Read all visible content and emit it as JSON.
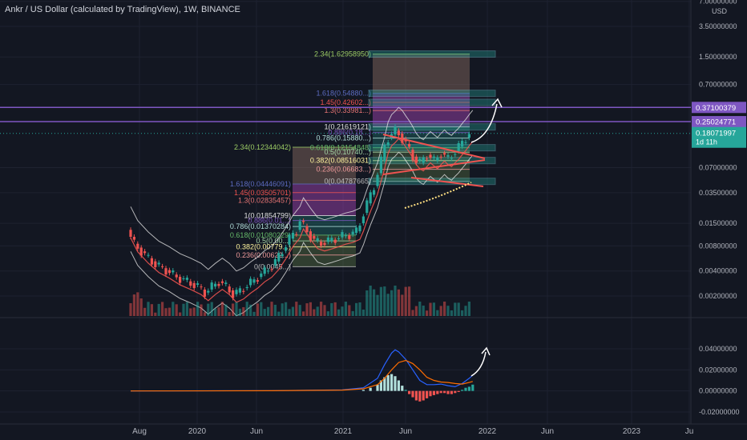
{
  "title": "Ankr / US Dollar (calculated by TradingView), 1W, BINANCE",
  "currency": "USD",
  "colors": {
    "background": "#131722",
    "grid": "#1e2230",
    "up": "#26a69a",
    "down": "#ef5350",
    "horizontal_line": "#7e57c2",
    "price_badge": "#26a69a"
  },
  "chart_data": [
    {
      "type": "candlestick",
      "yscale": "log",
      "x_tick_labels": [
        "Aug",
        "2020",
        "Jun",
        "2021",
        "Jun",
        "2022",
        "Jun",
        "2023",
        "Ju"
      ],
      "y_tick_labels": [
        "7.00000000",
        "3.50000000",
        "1.50000000",
        "0.70000000",
        "0.07000000",
        "0.03500000",
        "0.01500000",
        "0.00800000",
        "0.00400000",
        "0.00200000"
      ],
      "y_tick_values": [
        7.0,
        3.5,
        1.5,
        0.7,
        0.07,
        0.035,
        0.015,
        0.008,
        0.004,
        0.002
      ],
      "horizontal_lines": [
        {
          "value": 0.37100379,
          "label": "0.37100379"
        },
        {
          "value": 0.25024771,
          "label": "0.25024771"
        }
      ],
      "last_price": {
        "value": 0.18071997,
        "label": "0.18071997",
        "countdown": "1d 11h"
      },
      "fib_levels_large": [
        {
          "label": "2.34(1.62958950)",
          "value": 1.6295895
        },
        {
          "label": "1.618(0.54880...)",
          "value": 0.5488
        },
        {
          "label": "1.45(0.42602...)",
          "value": 0.42602
        },
        {
          "label": "1.3(0.33981...)",
          "value": 0.33981
        },
        {
          "label": "1(0.21619121)",
          "value": 0.21619121
        },
        {
          "label": "0.886(0.18...)",
          "value": 0.185
        },
        {
          "label": "0.786(0.15880...)",
          "value": 0.1588
        },
        {
          "label": "0.618(0.12154848)",
          "value": 0.12154848
        },
        {
          "label": "0.5(0.10740...)",
          "value": 0.1074
        },
        {
          "label": "0.382(0.08516031)",
          "value": 0.08516031
        },
        {
          "label": "0.236(0.06683...)",
          "value": 0.06683
        },
        {
          "label": "0(0.04787665)",
          "value": 0.04787665
        }
      ],
      "fib_levels_small": [
        {
          "label": "2.34(0.12344042)",
          "value": 0.12344042
        },
        {
          "label": "1.618(0.04446091)",
          "value": 0.04446091
        },
        {
          "label": "1.45(0.03505701)",
          "value": 0.03505701
        },
        {
          "label": "1.3(0.02835457)",
          "value": 0.02835457
        },
        {
          "label": "1(0.01854799)",
          "value": 0.01854799
        },
        {
          "label": "0.886(0.01...)",
          "value": 0.0162
        },
        {
          "label": "0.786(0.01370284)",
          "value": 0.01370284
        },
        {
          "label": "0.618(0.01080229)",
          "value": 0.01080229
        },
        {
          "label": "0.5(0.00...)",
          "value": 0.0092
        },
        {
          "label": "0.382(0.00779...)",
          "value": 0.00779
        },
        {
          "label": "0.236(0.00622...)",
          "value": 0.00622
        },
        {
          "label": "0(0.0045...)",
          "value": 0.0045
        }
      ],
      "price_series": [
        {
          "t": 0,
          "v": 0.0125
        },
        {
          "t": 2,
          "v": 0.0085
        },
        {
          "t": 5,
          "v": 0.0062
        },
        {
          "t": 8,
          "v": 0.0048
        },
        {
          "t": 11,
          "v": 0.0041
        },
        {
          "t": 14,
          "v": 0.0034
        },
        {
          "t": 17,
          "v": 0.003
        },
        {
          "t": 20,
          "v": 0.0026
        },
        {
          "t": 22,
          "v": 0.0022
        },
        {
          "t": 24,
          "v": 0.0026
        },
        {
          "t": 26,
          "v": 0.003
        },
        {
          "t": 28,
          "v": 0.0026
        },
        {
          "t": 30,
          "v": 0.0021
        },
        {
          "t": 32,
          "v": 0.0023
        },
        {
          "t": 34,
          "v": 0.0027
        },
        {
          "t": 36,
          "v": 0.0031
        },
        {
          "t": 38,
          "v": 0.0037
        },
        {
          "t": 40,
          "v": 0.0042
        },
        {
          "t": 42,
          "v": 0.0052
        },
        {
          "t": 44,
          "v": 0.007
        },
        {
          "t": 46,
          "v": 0.0098
        },
        {
          "t": 48,
          "v": 0.0125
        },
        {
          "t": 49,
          "v": 0.016
        },
        {
          "t": 51,
          "v": 0.012
        },
        {
          "t": 53,
          "v": 0.0093
        },
        {
          "t": 55,
          "v": 0.0087
        },
        {
          "t": 57,
          "v": 0.0092
        },
        {
          "t": 59,
          "v": 0.0098
        },
        {
          "t": 61,
          "v": 0.0105
        },
        {
          "t": 63,
          "v": 0.011
        },
        {
          "t": 65,
          "v": 0.012
        },
        {
          "t": 66,
          "v": 0.015
        },
        {
          "t": 67,
          "v": 0.02
        },
        {
          "t": 68,
          "v": 0.026
        },
        {
          "t": 69,
          "v": 0.033
        },
        {
          "t": 70,
          "v": 0.042
        },
        {
          "t": 71,
          "v": 0.06
        },
        {
          "t": 72,
          "v": 0.085
        },
        {
          "t": 73,
          "v": 0.13
        },
        {
          "t": 74,
          "v": 0.16
        },
        {
          "t": 75,
          "v": 0.175
        },
        {
          "t": 76,
          "v": 0.195
        },
        {
          "t": 77,
          "v": 0.18
        },
        {
          "t": 78,
          "v": 0.155
        },
        {
          "t": 79,
          "v": 0.135
        },
        {
          "t": 80,
          "v": 0.115
        },
        {
          "t": 81,
          "v": 0.095
        },
        {
          "t": 82,
          "v": 0.085
        },
        {
          "t": 83,
          "v": 0.08
        },
        {
          "t": 84,
          "v": 0.09
        },
        {
          "t": 85,
          "v": 0.1
        },
        {
          "t": 86,
          "v": 0.092
        },
        {
          "t": 87,
          "v": 0.085
        },
        {
          "t": 88,
          "v": 0.095
        },
        {
          "t": 89,
          "v": 0.105
        },
        {
          "t": 90,
          "v": 0.095
        },
        {
          "t": 91,
          "v": 0.09
        },
        {
          "t": 92,
          "v": 0.1
        },
        {
          "t": 93,
          "v": 0.11
        },
        {
          "t": 94,
          "v": 0.125
        },
        {
          "t": 95,
          "v": 0.14
        },
        {
          "t": 96,
          "v": 0.16
        },
        {
          "t": 97,
          "v": 0.1807
        }
      ]
    },
    {
      "type": "macd",
      "y_tick_labels": [
        "0.04000000",
        "0.02000000",
        "0.00000000",
        "-0.02000000"
      ],
      "y_tick_values": [
        0.04,
        0.02,
        0.0,
        -0.02
      ],
      "ylim": [
        -0.025,
        0.045
      ],
      "macd_line": [
        {
          "t": 0,
          "v": 0.0
        },
        {
          "t": 40,
          "v": 0.0003
        },
        {
          "t": 60,
          "v": 0.001
        },
        {
          "t": 66,
          "v": 0.003
        },
        {
          "t": 70,
          "v": 0.012
        },
        {
          "t": 72,
          "v": 0.025
        },
        {
          "t": 74,
          "v": 0.036
        },
        {
          "t": 75,
          "v": 0.039
        },
        {
          "t": 76,
          "v": 0.037
        },
        {
          "t": 78,
          "v": 0.03
        },
        {
          "t": 80,
          "v": 0.02
        },
        {
          "t": 82,
          "v": 0.01
        },
        {
          "t": 84,
          "v": 0.006
        },
        {
          "t": 86,
          "v": 0.006
        },
        {
          "t": 88,
          "v": 0.0065
        },
        {
          "t": 90,
          "v": 0.005
        },
        {
          "t": 92,
          "v": 0.004
        },
        {
          "t": 94,
          "v": 0.007
        },
        {
          "t": 96,
          "v": 0.012
        },
        {
          "t": 97,
          "v": 0.015
        }
      ],
      "signal_line": [
        {
          "t": 0,
          "v": 0.0
        },
        {
          "t": 40,
          "v": 0.0002
        },
        {
          "t": 60,
          "v": 0.0008
        },
        {
          "t": 66,
          "v": 0.002
        },
        {
          "t": 70,
          "v": 0.006
        },
        {
          "t": 72,
          "v": 0.012
        },
        {
          "t": 74,
          "v": 0.02
        },
        {
          "t": 76,
          "v": 0.027
        },
        {
          "t": 78,
          "v": 0.029
        },
        {
          "t": 80,
          "v": 0.026
        },
        {
          "t": 82,
          "v": 0.02
        },
        {
          "t": 84,
          "v": 0.013
        },
        {
          "t": 86,
          "v": 0.01
        },
        {
          "t": 88,
          "v": 0.0085
        },
        {
          "t": 90,
          "v": 0.008
        },
        {
          "t": 92,
          "v": 0.007
        },
        {
          "t": 94,
          "v": 0.0065
        },
        {
          "t": 96,
          "v": 0.008
        },
        {
          "t": 97,
          "v": 0.009
        }
      ],
      "histogram": [
        {
          "t": 66,
          "v": 0.001
        },
        {
          "t": 68,
          "v": 0.003
        },
        {
          "t": 70,
          "v": 0.006
        },
        {
          "t": 71,
          "v": 0.01
        },
        {
          "t": 72,
          "v": 0.013
        },
        {
          "t": 73,
          "v": 0.015
        },
        {
          "t": 74,
          "v": 0.016
        },
        {
          "t": 75,
          "v": 0.014
        },
        {
          "t": 76,
          "v": 0.01
        },
        {
          "t": 77,
          "v": 0.005
        },
        {
          "t": 78,
          "v": 0.001
        },
        {
          "t": 79,
          "v": -0.003
        },
        {
          "t": 80,
          "v": -0.006
        },
        {
          "t": 81,
          "v": -0.009
        },
        {
          "t": 82,
          "v": -0.01
        },
        {
          "t": 83,
          "v": -0.009
        },
        {
          "t": 84,
          "v": -0.007
        },
        {
          "t": 85,
          "v": -0.005
        },
        {
          "t": 86,
          "v": -0.004
        },
        {
          "t": 87,
          "v": -0.003
        },
        {
          "t": 88,
          "v": -0.002
        },
        {
          "t": 89,
          "v": -0.002
        },
        {
          "t": 90,
          "v": -0.003
        },
        {
          "t": 91,
          "v": -0.003
        },
        {
          "t": 92,
          "v": -0.002
        },
        {
          "t": 93,
          "v": -0.001
        },
        {
          "t": 94,
          "v": 0.001
        },
        {
          "t": 95,
          "v": 0.003
        },
        {
          "t": 96,
          "v": 0.004
        },
        {
          "t": 97,
          "v": 0.006
        }
      ]
    }
  ]
}
